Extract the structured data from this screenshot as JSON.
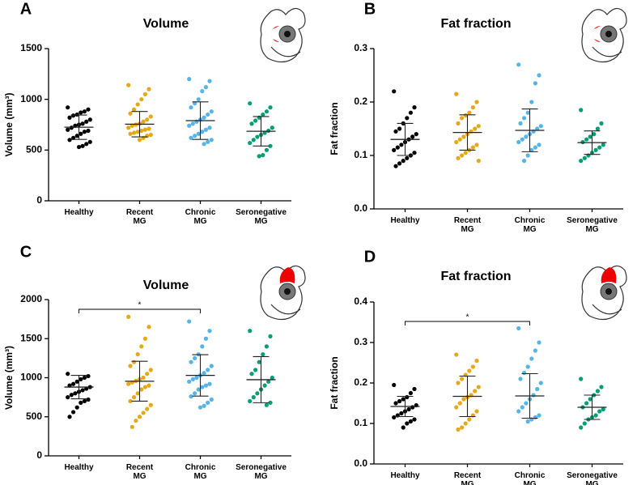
{
  "chart_data": [
    {
      "type": "strip",
      "panel": "A",
      "title": "Volume",
      "ylabel": "Volume (mm³)",
      "icon": "side",
      "categories": [
        "Healthy",
        "Recent MG",
        "Chronic MG",
        "Seronegative MG"
      ],
      "ylim": [
        0,
        1500
      ],
      "yticks": [
        0,
        500,
        1000,
        1500
      ],
      "series": [
        {
          "color": "#000000",
          "mean": 725,
          "sd": 120,
          "values": [
            920,
            900,
            880,
            870,
            850,
            840,
            820,
            800,
            780,
            760,
            750,
            740,
            720,
            700,
            690,
            680,
            660,
            640,
            620,
            600,
            580,
            560,
            540,
            530
          ]
        },
        {
          "color": "#e6a817",
          "mean": 755,
          "sd": 125,
          "values": [
            1140,
            1100,
            1050,
            1000,
            950,
            900,
            860,
            830,
            800,
            780,
            760,
            750,
            740,
            720,
            710,
            700,
            690,
            680,
            670,
            660,
            650,
            640,
            620,
            600
          ]
        },
        {
          "color": "#56b4e9",
          "mean": 790,
          "sd": 185,
          "values": [
            1200,
            1180,
            1120,
            1080,
            1000,
            960,
            920,
            880,
            850,
            820,
            800,
            780,
            760,
            740,
            720,
            700,
            680,
            660,
            640,
            620,
            600,
            580,
            560
          ]
        },
        {
          "color": "#009e73",
          "mean": 685,
          "sd": 145,
          "values": [
            960,
            920,
            880,
            850,
            820,
            790,
            760,
            720,
            690,
            670,
            650,
            630,
            600,
            570,
            540,
            500,
            450,
            440
          ]
        }
      ]
    },
    {
      "type": "strip",
      "panel": "B",
      "title": "Fat fraction",
      "ylabel": "Fat fraction",
      "icon": "side",
      "categories": [
        "Healthy",
        "Recent MG",
        "Chronic MG",
        "Seronegative MG"
      ],
      "ylim": [
        0,
        0.3
      ],
      "yticks": [
        {
          "value": 0,
          "label": "0.0"
        },
        0.1,
        0.2,
        0.3
      ],
      "series": [
        {
          "color": "#000000",
          "mean": 0.13,
          "sd": 0.03,
          "values": [
            0.22,
            0.19,
            0.18,
            0.17,
            0.16,
            0.15,
            0.145,
            0.14,
            0.135,
            0.13,
            0.125,
            0.12,
            0.115,
            0.11,
            0.105,
            0.1,
            0.095,
            0.09,
            0.085,
            0.08
          ]
        },
        {
          "color": "#e6a817",
          "mean": 0.143,
          "sd": 0.033,
          "values": [
            0.215,
            0.2,
            0.19,
            0.18,
            0.175,
            0.17,
            0.16,
            0.155,
            0.15,
            0.145,
            0.14,
            0.135,
            0.13,
            0.125,
            0.12,
            0.115,
            0.11,
            0.105,
            0.1,
            0.095,
            0.09
          ]
        },
        {
          "color": "#56b4e9",
          "mean": 0.147,
          "sd": 0.04,
          "values": [
            0.27,
            0.25,
            0.235,
            0.2,
            0.18,
            0.17,
            0.16,
            0.155,
            0.15,
            0.145,
            0.14,
            0.135,
            0.13,
            0.125,
            0.12,
            0.115,
            0.11,
            0.1,
            0.09
          ]
        },
        {
          "color": "#009e73",
          "mean": 0.124,
          "sd": 0.022,
          "values": [
            0.185,
            0.16,
            0.15,
            0.14,
            0.135,
            0.13,
            0.125,
            0.12,
            0.115,
            0.11,
            0.105,
            0.1,
            0.095,
            0.09
          ]
        }
      ]
    },
    {
      "type": "strip",
      "panel": "C",
      "title": "Volume",
      "ylabel": "Volume (mm³)",
      "icon": "top",
      "categories": [
        "Healthy",
        "Recent MG",
        "Chronic MG",
        "Seronegative MG"
      ],
      "ylim": [
        0,
        2000
      ],
      "yticks": [
        0,
        500,
        1000,
        1500,
        2000
      ],
      "significance": {
        "label": "*",
        "groups": [
          "Healthy",
          "Chronic MG"
        ]
      },
      "series": [
        {
          "color": "#000000",
          "mean": 880,
          "sd": 150,
          "values": [
            1050,
            1020,
            1000,
            980,
            950,
            920,
            900,
            880,
            860,
            840,
            820,
            800,
            780,
            750,
            720,
            700,
            680,
            620,
            560,
            500
          ]
        },
        {
          "color": "#e6a817",
          "mean": 955,
          "sd": 255,
          "values": [
            1780,
            1650,
            1500,
            1400,
            1300,
            1200,
            1150,
            1100,
            1050,
            1000,
            980,
            960,
            940,
            920,
            900,
            880,
            850,
            800,
            750,
            700,
            650,
            600,
            550,
            500,
            450,
            370
          ]
        },
        {
          "color": "#56b4e9",
          "mean": 1030,
          "sd": 265,
          "values": [
            1720,
            1600,
            1500,
            1400,
            1300,
            1250,
            1200,
            1150,
            1100,
            1060,
            1030,
            1000,
            980,
            950,
            920,
            900,
            880,
            850,
            800,
            760,
            720,
            680,
            640,
            620
          ]
        },
        {
          "color": "#009e73",
          "mean": 975,
          "sd": 295,
          "values": [
            1600,
            1530,
            1400,
            1300,
            1200,
            1100,
            1050,
            1000,
            950,
            900,
            850,
            800,
            750,
            700,
            680,
            650
          ]
        }
      ]
    },
    {
      "type": "strip",
      "panel": "D",
      "title": "Fat fraction",
      "ylabel": "Fat fraction",
      "icon": "top",
      "categories": [
        "Healthy",
        "Recent MG",
        "Chronic MG",
        "Seronegative MG"
      ],
      "ylim": [
        0,
        0.4
      ],
      "yticks": [
        {
          "value": 0,
          "label": "0.0"
        },
        0.1,
        0.2,
        0.3,
        0.4
      ],
      "significance": {
        "label": "*",
        "groups": [
          "Healthy",
          "Chronic MG"
        ]
      },
      "series": [
        {
          "color": "#000000",
          "mean": 0.142,
          "sd": 0.025,
          "values": [
            0.195,
            0.185,
            0.175,
            0.165,
            0.16,
            0.155,
            0.15,
            0.145,
            0.14,
            0.135,
            0.13,
            0.125,
            0.12,
            0.115,
            0.11,
            0.105,
            0.1,
            0.09
          ]
        },
        {
          "color": "#e6a817",
          "mean": 0.167,
          "sd": 0.05,
          "values": [
            0.27,
            0.255,
            0.24,
            0.23,
            0.22,
            0.21,
            0.2,
            0.19,
            0.18,
            0.17,
            0.165,
            0.16,
            0.15,
            0.14,
            0.13,
            0.12,
            0.11,
            0.1,
            0.09,
            0.085
          ]
        },
        {
          "color": "#56b4e9",
          "mean": 0.168,
          "sd": 0.055,
          "values": [
            0.335,
            0.3,
            0.28,
            0.26,
            0.24,
            0.225,
            0.21,
            0.2,
            0.185,
            0.17,
            0.16,
            0.15,
            0.14,
            0.13,
            0.12,
            0.115,
            0.11,
            0.105
          ]
        },
        {
          "color": "#009e73",
          "mean": 0.14,
          "sd": 0.03,
          "values": [
            0.21,
            0.19,
            0.18,
            0.17,
            0.16,
            0.15,
            0.14,
            0.135,
            0.13,
            0.12,
            0.115,
            0.11,
            0.1,
            0.09
          ]
        }
      ]
    }
  ]
}
